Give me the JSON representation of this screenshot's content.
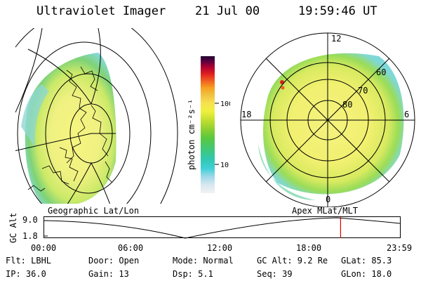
{
  "header": {
    "instrument": "Ultraviolet Imager",
    "date": "21 Jul 00",
    "time": "19:59:46 UT"
  },
  "colorbar": {
    "label": "photon cm⁻²s⁻¹",
    "ticks": [
      "100",
      "10"
    ],
    "colors": [
      "#f2f2f2",
      "#d8e8f0",
      "#9fd8e8",
      "#40d0d8",
      "#30c8b0",
      "#40c878",
      "#58c840",
      "#90d030",
      "#c8e030",
      "#f0f040",
      "#f8e050",
      "#f0c040",
      "#f8a020",
      "#f06020",
      "#e02020",
      "#b00030",
      "#600040",
      "#200030"
    ]
  },
  "left_panel": {
    "caption": "Geographic Lat/Lon"
  },
  "right_panel": {
    "caption": "Apex MLat/MLT",
    "mlt_labels": {
      "top": "12",
      "left": "18",
      "right": "6",
      "bottom": "0"
    },
    "lat_labels": [
      "60",
      "70",
      "80"
    ]
  },
  "timeline": {
    "axis_label": "GC Alt",
    "y_ticks": [
      "9.0",
      "1.8"
    ],
    "x_ticks": [
      "00:00",
      "06:00",
      "12:00",
      "18:00",
      "23:59"
    ],
    "current_time_fraction": 0.8332
  },
  "status": {
    "flt": "Flt: LBHL",
    "door": "Door: Open",
    "mode": "Mode: Normal",
    "gc_alt": "GC Alt: 9.2 Re",
    "glat": "GLat:  85.3",
    "ip": "IP: 36.0",
    "gain": "Gain: 13",
    "dsp": "Dsp:    5.1",
    "seq": "Seq: 39",
    "glon": "GLon:  18.0"
  }
}
